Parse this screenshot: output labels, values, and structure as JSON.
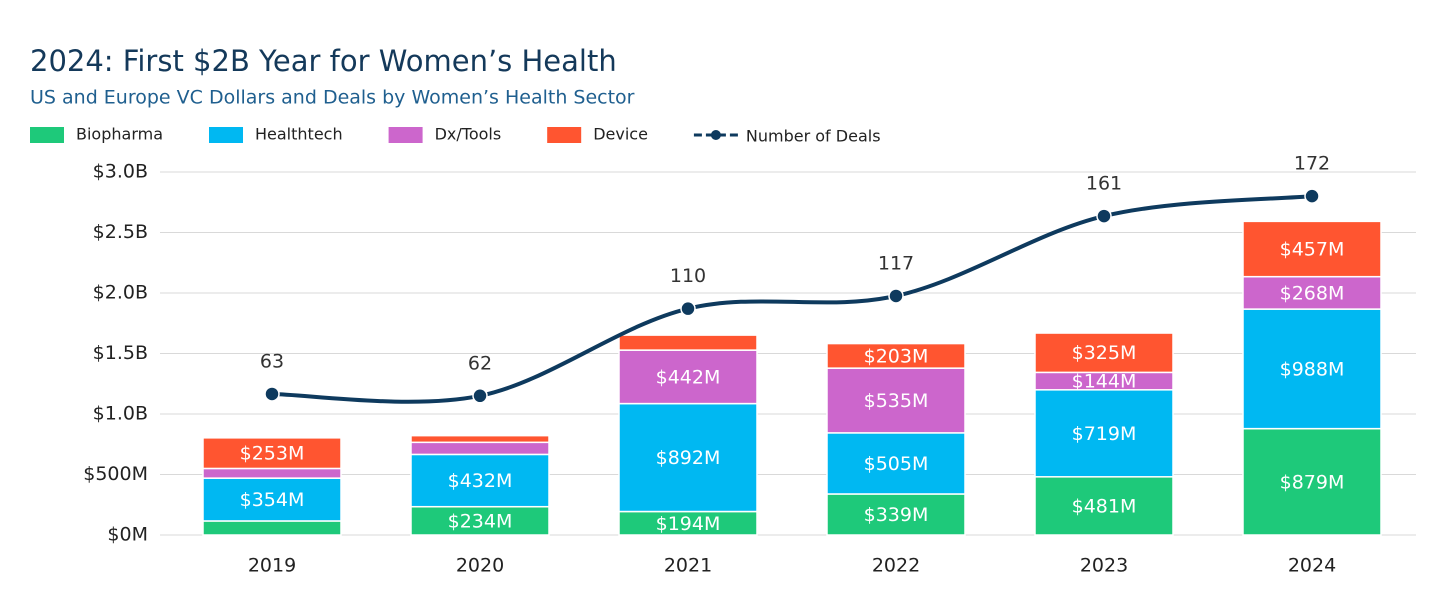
{
  "chart_data": {
    "type": "bar",
    "stacked": true,
    "title": "2024: First $2B Year for Women’s Health",
    "subtitle": "US and Europe VC Dollars and Deals by Women’s Health Sector",
    "categories": [
      "2019",
      "2020",
      "2021",
      "2022",
      "2023",
      "2024"
    ],
    "ylim": [
      0,
      3000
    ],
    "yticks": [
      {
        "value": 0,
        "label": "$0M"
      },
      {
        "value": 500,
        "label": "$500M"
      },
      {
        "value": 1000,
        "label": "$1.0B"
      },
      {
        "value": 1500,
        "label": "$1.5B"
      },
      {
        "value": 2000,
        "label": "$2.0B"
      },
      {
        "value": 2500,
        "label": "$2.5B"
      },
      {
        "value": 3000,
        "label": "$3.0B"
      }
    ],
    "y2lim": [
      -14.7,
      185.3
    ],
    "grid": true,
    "legend": "top-left",
    "series": [
      {
        "name": "Biopharma",
        "color": "#1ec97a",
        "values": [
          116,
          234,
          194,
          339,
          481,
          879
        ],
        "value_labels": [
          null,
          "$234M",
          "$194M",
          "$339M",
          "$481M",
          "$879M"
        ]
      },
      {
        "name": "Healthtech",
        "color": "#00b8f2",
        "values": [
          354,
          432,
          892,
          505,
          719,
          988
        ],
        "value_labels": [
          "$354M",
          "$432M",
          "$892M",
          "$505M",
          "$719M",
          "$988M"
        ]
      },
      {
        "name": "Dx/Tools",
        "color": "#cc66cc",
        "values": [
          80,
          100,
          442,
          535,
          144,
          268
        ],
        "value_labels": [
          null,
          null,
          "$442M",
          "$535M",
          "$144M",
          "$268M"
        ]
      },
      {
        "name": "Device",
        "color": "#ff5530",
        "values": [
          253,
          55,
          124,
          203,
          325,
          457
        ],
        "value_labels": [
          "$253M",
          null,
          null,
          "$203M",
          "$325M",
          "$457M"
        ]
      },
      {
        "name": "Number of Deals",
        "type": "line",
        "axis": "y2",
        "color": "#0e3a5e",
        "values": [
          63,
          62,
          110,
          117,
          161,
          172
        ]
      }
    ]
  }
}
